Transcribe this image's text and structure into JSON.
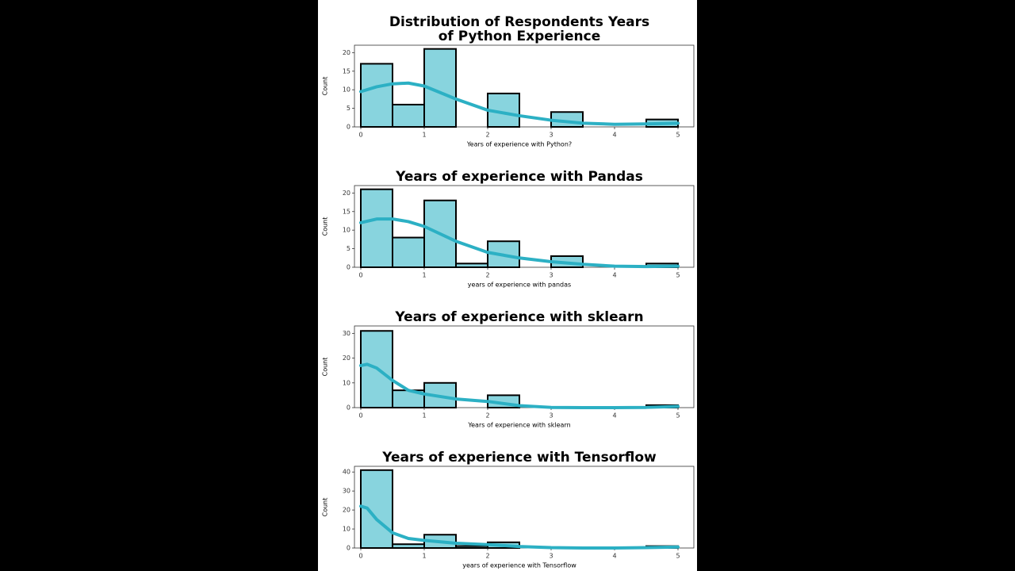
{
  "chart_data": [
    {
      "type": "histogram",
      "title": [
        "Distribution of Respondents Years",
        "of Python Experience"
      ],
      "xlabel": "Years of experience with Python?",
      "ylabel": "Count",
      "bins": [
        0,
        0.5,
        1,
        1.5,
        2,
        2.5,
        3,
        3.5,
        4,
        4.5,
        5
      ],
      "counts": [
        17,
        6,
        21,
        0,
        9,
        0,
        4,
        0,
        0,
        2
      ],
      "kde": {
        "x": [
          0,
          0.25,
          0.5,
          0.75,
          1,
          1.5,
          2,
          2.5,
          3,
          3.5,
          4,
          4.5,
          5
        ],
        "values": [
          9.5,
          10.8,
          11.6,
          11.8,
          11,
          7.5,
          4.5,
          3,
          1.8,
          1,
          0.7,
          0.8,
          1
        ]
      },
      "color": "#88d4de",
      "edgecolor": "#000000",
      "kde_color": "#2cb0c4",
      "xlim": [
        -0.1,
        5.25
      ],
      "ylim": [
        0,
        22
      ],
      "xticks": [
        0,
        1,
        2,
        3,
        4,
        5
      ],
      "yticks": [
        0,
        5,
        10,
        15,
        20
      ]
    },
    {
      "type": "histogram",
      "title": [
        "Years of experience with Pandas"
      ],
      "xlabel": "years of experience with pandas",
      "ylabel": "Count",
      "bins": [
        0,
        0.5,
        1,
        1.5,
        2,
        2.5,
        3,
        3.5,
        4,
        4.5,
        5
      ],
      "counts": [
        21,
        8,
        18,
        1,
        7,
        0,
        3,
        0,
        0,
        1
      ],
      "kde": {
        "x": [
          0,
          0.25,
          0.5,
          0.75,
          1,
          1.5,
          2,
          2.5,
          3,
          3.5,
          4,
          4.5,
          5
        ],
        "values": [
          12,
          13,
          13,
          12.3,
          11,
          7,
          4,
          2.5,
          1.5,
          0.8,
          0.3,
          0.2,
          0.3
        ]
      },
      "color": "#88d4de",
      "edgecolor": "#000000",
      "kde_color": "#2cb0c4",
      "xlim": [
        -0.1,
        5.25
      ],
      "ylim": [
        0,
        22
      ],
      "xticks": [
        0,
        1,
        2,
        3,
        4,
        5
      ],
      "yticks": [
        0,
        5,
        10,
        15,
        20
      ]
    },
    {
      "type": "histogram",
      "title": [
        "Years of experience with sklearn"
      ],
      "xlabel": "Years of experience with sklearn",
      "ylabel": "Count",
      "bins": [
        0,
        0.5,
        1,
        1.5,
        2,
        2.5,
        3,
        3.5,
        4,
        4.5,
        5
      ],
      "counts": [
        31,
        7,
        10,
        0,
        5,
        0,
        0,
        0,
        0,
        1
      ],
      "kde": {
        "x": [
          0,
          0.1,
          0.25,
          0.5,
          0.75,
          1,
          1.5,
          2,
          2.5,
          3,
          3.5,
          4,
          4.5,
          5
        ],
        "values": [
          17,
          17.5,
          16,
          11,
          7,
          5.5,
          3.5,
          2.5,
          0.8,
          0.1,
          0,
          0,
          0.1,
          0.5
        ]
      },
      "color": "#88d4de",
      "edgecolor": "#000000",
      "kde_color": "#2cb0c4",
      "xlim": [
        -0.1,
        5.25
      ],
      "ylim": [
        0,
        33
      ],
      "xticks": [
        0,
        1,
        2,
        3,
        4,
        5
      ],
      "yticks": [
        0,
        10,
        20,
        30
      ]
    },
    {
      "type": "histogram",
      "title": [
        "Years of experience with Tensorflow"
      ],
      "xlabel": "years of experience with Tensorflow",
      "ylabel": "Count",
      "bins": [
        0,
        0.5,
        1,
        1.5,
        2,
        2.5,
        3,
        3.5,
        4,
        4.5,
        5
      ],
      "counts": [
        41,
        2,
        7,
        1,
        3,
        0,
        0,
        0,
        0,
        1
      ],
      "kde": {
        "x": [
          0,
          0.1,
          0.25,
          0.5,
          0.75,
          1,
          1.5,
          2,
          2.5,
          3,
          3.5,
          4,
          4.5,
          5
        ],
        "values": [
          22,
          21,
          15,
          8,
          5,
          4,
          2.5,
          1.8,
          0.8,
          0.2,
          0,
          0,
          0.2,
          0.5
        ]
      },
      "color": "#88d4de",
      "edgecolor": "#000000",
      "kde_color": "#2cb0c4",
      "xlim": [
        -0.1,
        5.25
      ],
      "ylim": [
        0,
        43
      ],
      "xticks": [
        0,
        1,
        2,
        3,
        4,
        5
      ],
      "yticks": [
        0,
        10,
        20,
        30,
        40
      ]
    }
  ]
}
